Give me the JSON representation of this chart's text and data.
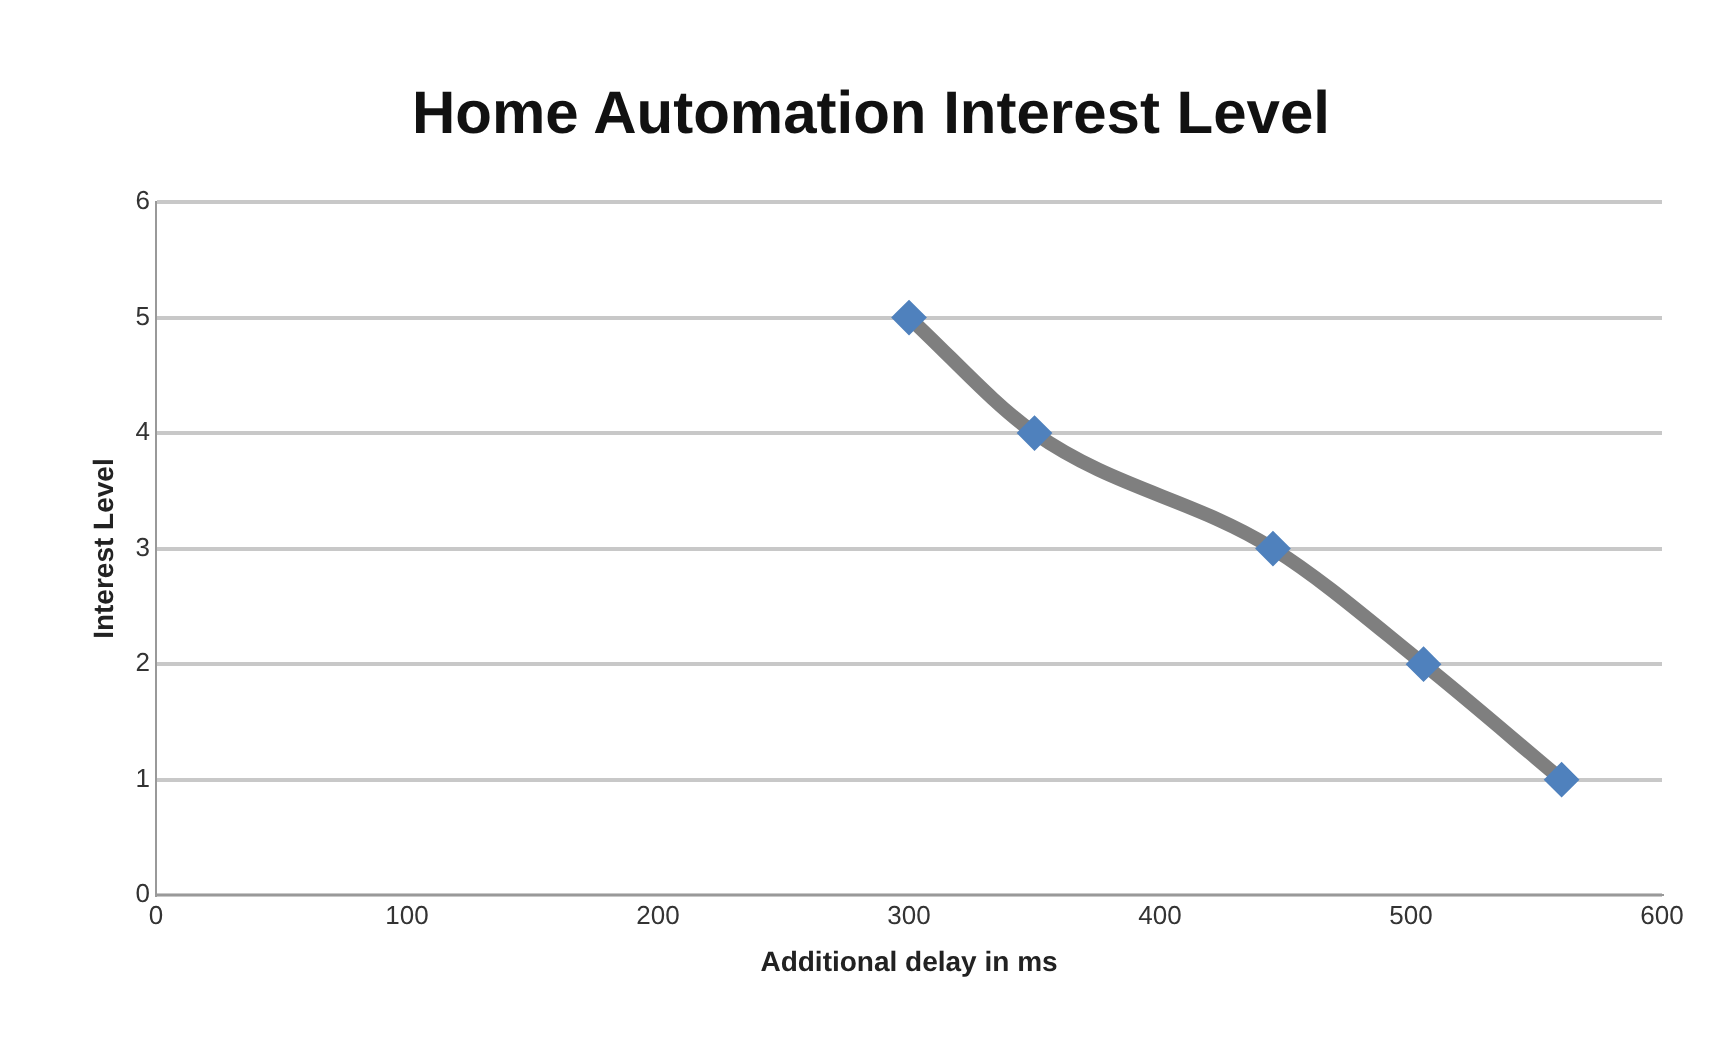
{
  "chart_data": {
    "type": "line",
    "title": "Home Automation Interest Level",
    "xlabel": "Additional delay in ms",
    "ylabel": "Interest Level",
    "x": [
      300,
      350,
      445,
      505,
      560
    ],
    "series": [
      {
        "color": "#7f7f7f",
        "values": [
          5,
          4,
          3,
          2,
          1
        ]
      }
    ],
    "xlim": [
      0,
      600
    ],
    "xticks": [
      0,
      100,
      200,
      300,
      400,
      500,
      600
    ],
    "ylim": [
      0,
      6
    ],
    "yticks": [
      0,
      1,
      2,
      3,
      4,
      5,
      6
    ],
    "grid": "y",
    "legend": false,
    "marker": "diamond",
    "line_style": "solid"
  }
}
